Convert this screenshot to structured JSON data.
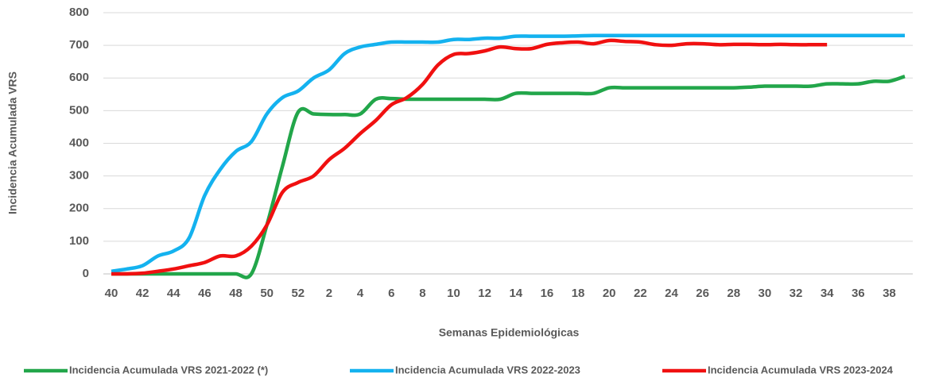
{
  "chart_data": {
    "type": "line",
    "xlabel": "Semanas Epidemiológicas",
    "ylabel": "Incidencia Acumulada VRS",
    "categories": [
      "40",
      null,
      "42",
      null,
      "44",
      null,
      "46",
      null,
      "48",
      null,
      "50",
      null,
      "52",
      null,
      "2",
      null,
      "4",
      null,
      "6",
      null,
      "8",
      null,
      "10",
      null,
      "12",
      null,
      "14",
      null,
      "16",
      null,
      "18",
      null,
      "20",
      null,
      "22",
      null,
      "24",
      null,
      "26",
      null,
      "28",
      null,
      "30",
      null,
      "32",
      null,
      "34",
      null,
      "36",
      null,
      "38",
      null
    ],
    "ylim": [
      0,
      800
    ],
    "yticks": [
      0,
      100,
      200,
      300,
      400,
      500,
      600,
      700,
      800
    ],
    "grid": true,
    "legend": "bottom",
    "series": [
      {
        "name": "Incidencia Acumulada VRS 2021-2022 (*)",
        "color": "#22a64a",
        "values": [
          0,
          0,
          0,
          0,
          0,
          0,
          0,
          0,
          0,
          0,
          150,
          330,
          495,
          490,
          488,
          488,
          490,
          535,
          537,
          535,
          535,
          535,
          535,
          535,
          535,
          535,
          553,
          553,
          553,
          553,
          553,
          553,
          570,
          570,
          570,
          570,
          570,
          570,
          570,
          570,
          570,
          572,
          575,
          575,
          575,
          575,
          582,
          582,
          582,
          590,
          590,
          605
        ]
      },
      {
        "name": "Incidencia Acumulada VRS 2022-2023",
        "color": "#14b2ef",
        "values": [
          8,
          15,
          25,
          55,
          70,
          110,
          240,
          320,
          375,
          405,
          490,
          540,
          560,
          600,
          625,
          675,
          695,
          703,
          710,
          710,
          710,
          710,
          718,
          718,
          722,
          722,
          728,
          728,
          728,
          728,
          729,
          730,
          730,
          730,
          730,
          730,
          730,
          730,
          730,
          730,
          730,
          730,
          730,
          730,
          730,
          730,
          730,
          730,
          730,
          730,
          730,
          730
        ]
      },
      {
        "name": "Incidencia Acumulada VRS 2023-2024",
        "color": "#f01010",
        "values": [
          0,
          0,
          2,
          8,
          15,
          25,
          35,
          55,
          55,
          85,
          150,
          250,
          280,
          300,
          350,
          385,
          430,
          470,
          518,
          540,
          580,
          640,
          672,
          675,
          683,
          695,
          690,
          690,
          703,
          708,
          710,
          705,
          715,
          712,
          710,
          702,
          700,
          705,
          705,
          702,
          703,
          703,
          702,
          703,
          702,
          702,
          702,
          null,
          null,
          null,
          null,
          null
        ]
      }
    ]
  }
}
